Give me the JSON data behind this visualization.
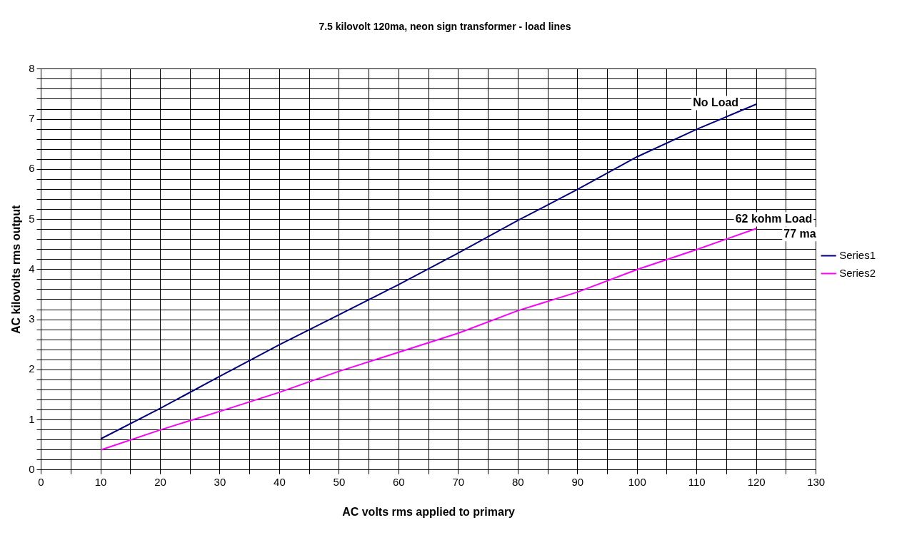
{
  "chart_data": {
    "type": "line",
    "title": "7.5 kilovolt 120ma, neon sign transformer - load lines",
    "xlabel": "AC volts rms applied to primary",
    "ylabel": "AC kilovolts rms output",
    "x": [
      10,
      20,
      30,
      40,
      50,
      60,
      70,
      80,
      90,
      100,
      110,
      120
    ],
    "series": [
      {
        "name": "Series1",
        "color": "#000080",
        "values": [
          0.62,
          1.23,
          1.87,
          2.5,
          3.1,
          3.7,
          4.33,
          4.98,
          5.6,
          6.25,
          6.8,
          7.3
        ]
      },
      {
        "name": "Series2",
        "color": "#ff00ff",
        "values": [
          0.4,
          0.8,
          1.17,
          1.55,
          1.97,
          2.35,
          2.73,
          3.18,
          3.55,
          4.0,
          4.4,
          4.82
        ]
      }
    ],
    "xlim": [
      0,
      130
    ],
    "xticks": [
      0,
      {
        "value": 5,
        "label": null
      },
      10,
      {
        "value": 15,
        "label": null
      },
      20,
      {
        "value": 25,
        "label": null
      },
      30,
      {
        "value": 35,
        "label": null
      },
      40,
      {
        "value": 45,
        "label": null
      },
      50,
      {
        "value": 55,
        "label": null
      },
      60,
      {
        "value": 65,
        "label": null
      },
      70,
      {
        "value": 75,
        "label": null
      },
      80,
      {
        "value": 85,
        "label": null
      },
      90,
      {
        "value": 95,
        "label": null
      },
      100,
      {
        "value": 105,
        "label": null
      },
      110,
      {
        "value": 115,
        "label": null
      },
      120,
      {
        "value": 125,
        "label": null
      },
      130
    ],
    "ylim": [
      0,
      8
    ],
    "yticks": [
      0,
      {
        "value": 0.2,
        "label": null
      },
      {
        "value": 0.4,
        "label": null
      },
      {
        "value": 0.6,
        "label": null
      },
      {
        "value": 0.8,
        "label": null
      },
      1,
      {
        "value": 1.2,
        "label": null
      },
      {
        "value": 1.4,
        "label": null
      },
      {
        "value": 1.6,
        "label": null
      },
      {
        "value": 1.8,
        "label": null
      },
      2,
      {
        "value": 2.2,
        "label": null
      },
      {
        "value": 2.4,
        "label": null
      },
      {
        "value": 2.6,
        "label": null
      },
      {
        "value": 2.8,
        "label": null
      },
      3,
      {
        "value": 3.2,
        "label": null
      },
      {
        "value": 3.4,
        "label": null
      },
      {
        "value": 3.6,
        "label": null
      },
      {
        "value": 3.8,
        "label": null
      },
      4,
      {
        "value": 4.2,
        "label": null
      },
      {
        "value": 4.4,
        "label": null
      },
      {
        "value": 4.6,
        "label": null
      },
      {
        "value": 4.8,
        "label": null
      },
      5,
      {
        "value": 5.2,
        "label": null
      },
      {
        "value": 5.4,
        "label": null
      },
      {
        "value": 5.6,
        "label": null
      },
      {
        "value": 5.8,
        "label": null
      },
      6,
      {
        "value": 6.2,
        "label": null
      },
      {
        "value": 6.4,
        "label": null
      },
      {
        "value": 6.6,
        "label": null
      },
      {
        "value": 6.8,
        "label": null
      },
      7,
      {
        "value": 7.2,
        "label": null
      },
      {
        "value": 7.4,
        "label": null
      },
      {
        "value": 7.6,
        "label": null
      },
      {
        "value": 7.8,
        "label": null
      },
      8
    ],
    "grid": true,
    "legend": "right",
    "marker": "none",
    "line_style": "solid",
    "annotations": [
      "No Load",
      "62 kohm Load",
      "77 ma"
    ]
  }
}
